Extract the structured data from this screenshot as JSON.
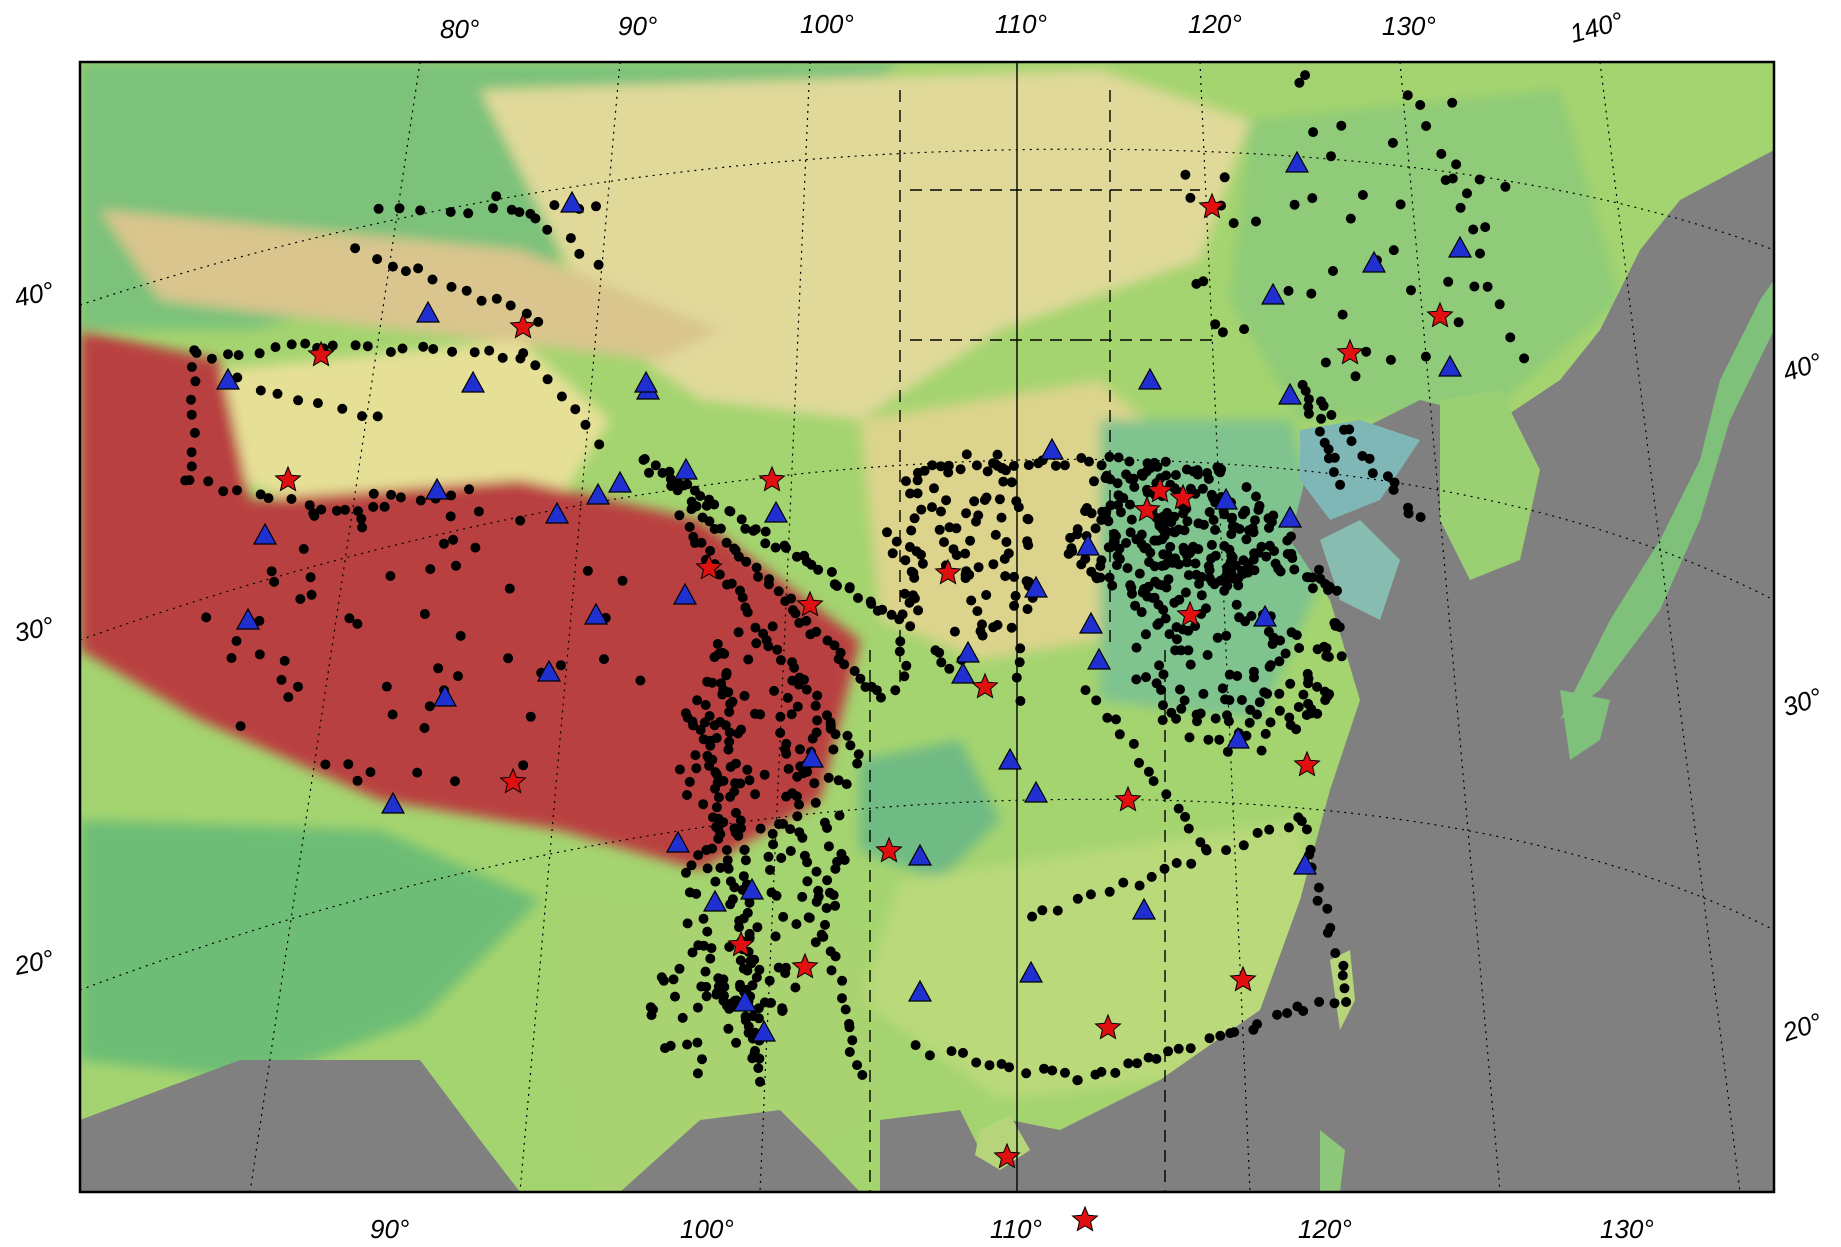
{
  "map": {
    "colors": {
      "ocean": "#808080",
      "lowland": "#6fc07f",
      "plain": "#a4d46f",
      "upland": "#e0d99a",
      "plateau": "#b93f3f",
      "water": "#7fb7b7",
      "station_dot": "#000000",
      "triangle": "#1f2fd0",
      "star": "#e01010",
      "frame": "#000000"
    },
    "top_lon_labels": [
      "80°",
      "90°",
      "100°",
      "110°",
      "120°",
      "130°",
      "140°"
    ],
    "bottom_lon_labels": [
      "90°",
      "100°",
      "110°",
      "120°",
      "130°"
    ],
    "left_lat_labels": [
      "40°",
      "30°",
      "20°"
    ],
    "right_lat_labels": [
      "40°",
      "30°",
      "20°"
    ],
    "marker_types": [
      "station-dot",
      "triangle-station",
      "star-station"
    ]
  }
}
